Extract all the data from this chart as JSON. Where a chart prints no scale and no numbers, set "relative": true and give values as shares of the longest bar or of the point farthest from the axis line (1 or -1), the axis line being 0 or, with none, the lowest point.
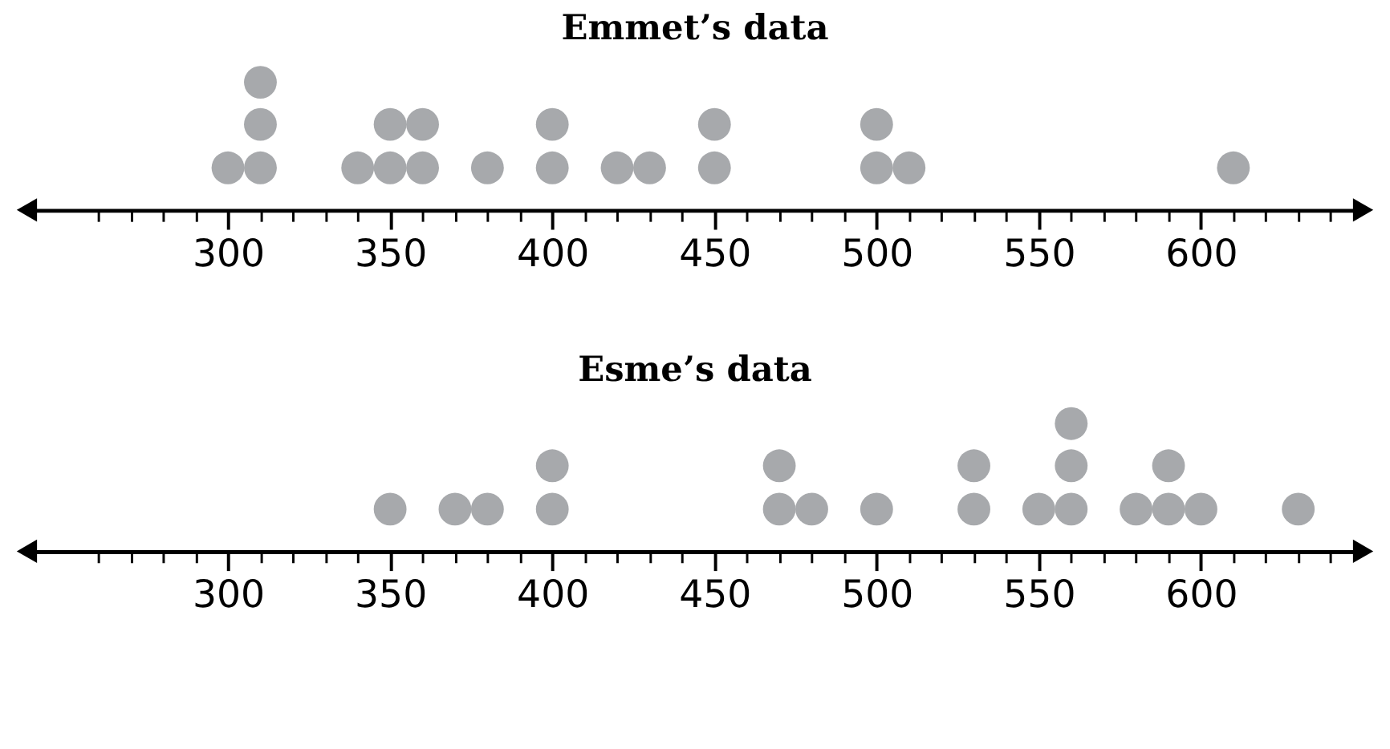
{
  "chart_data": [
    {
      "type": "scatter",
      "title": "Emmet’s data",
      "relative": true,
      "marker": "circle",
      "color": "#a7a9ac",
      "xlim": [
        238,
        650
      ],
      "tick_labels": "x",
      "x": [
        300,
        310,
        310,
        310,
        340,
        350,
        350,
        360,
        360,
        380,
        400,
        400,
        420,
        430,
        450,
        450,
        500,
        500,
        510,
        610
      ],
      "values": [
        0.33,
        0.33,
        0.67,
        1,
        0.33,
        0.33,
        0.67,
        0.33,
        0.67,
        0.33,
        0.33,
        0.67,
        0.33,
        0.33,
        0.33,
        0.67,
        0.33,
        0.67,
        0.33,
        0.33
      ],
      "xticks": [
        {
          "value": 260,
          "label": null
        },
        {
          "value": 270,
          "label": null
        },
        {
          "value": 280,
          "label": null
        },
        {
          "value": 290,
          "label": null
        },
        300,
        {
          "value": 310,
          "label": null
        },
        {
          "value": 320,
          "label": null
        },
        {
          "value": 330,
          "label": null
        },
        {
          "value": 340,
          "label": null
        },
        350,
        {
          "value": 360,
          "label": null
        },
        {
          "value": 370,
          "label": null
        },
        {
          "value": 380,
          "label": null
        },
        {
          "value": 390,
          "label": null
        },
        400,
        {
          "value": 410,
          "label": null
        },
        {
          "value": 420,
          "label": null
        },
        {
          "value": 430,
          "label": null
        },
        {
          "value": 440,
          "label": null
        },
        450,
        {
          "value": 460,
          "label": null
        },
        {
          "value": 470,
          "label": null
        },
        {
          "value": 480,
          "label": null
        },
        {
          "value": 490,
          "label": null
        },
        500,
        {
          "value": 510,
          "label": null
        },
        {
          "value": 520,
          "label": null
        },
        {
          "value": 530,
          "label": null
        },
        {
          "value": 540,
          "label": null
        },
        550,
        {
          "value": 560,
          "label": null
        },
        {
          "value": 570,
          "label": null
        },
        {
          "value": 580,
          "label": null
        },
        {
          "value": 590,
          "label": null
        },
        600,
        {
          "value": 610,
          "label": null
        },
        {
          "value": 620,
          "label": null
        },
        {
          "value": 630,
          "label": null
        },
        {
          "value": 640,
          "label": null
        }
      ]
    },
    {
      "type": "scatter",
      "title": "Esme’s data",
      "relative": true,
      "marker": "circle",
      "color": "#a7a9ac",
      "xlim": [
        238,
        650
      ],
      "tick_labels": "x",
      "x": [
        350,
        370,
        380,
        400,
        400,
        470,
        470,
        480,
        500,
        530,
        530,
        550,
        560,
        560,
        560,
        580,
        590,
        590,
        600,
        630
      ],
      "values": [
        0.33,
        0.33,
        0.33,
        0.33,
        0.67,
        0.33,
        0.67,
        0.33,
        0.33,
        0.33,
        0.67,
        0.33,
        0.33,
        0.67,
        1,
        0.33,
        0.33,
        0.67,
        0.33,
        0.33
      ],
      "xticks": [
        {
          "value": 260,
          "label": null
        },
        {
          "value": 270,
          "label": null
        },
        {
          "value": 280,
          "label": null
        },
        {
          "value": 290,
          "label": null
        },
        300,
        {
          "value": 310,
          "label": null
        },
        {
          "value": 320,
          "label": null
        },
        {
          "value": 330,
          "label": null
        },
        {
          "value": 340,
          "label": null
        },
        350,
        {
          "value": 360,
          "label": null
        },
        {
          "value": 370,
          "label": null
        },
        {
          "value": 380,
          "label": null
        },
        {
          "value": 390,
          "label": null
        },
        400,
        {
          "value": 410,
          "label": null
        },
        {
          "value": 420,
          "label": null
        },
        {
          "value": 430,
          "label": null
        },
        {
          "value": 440,
          "label": null
        },
        450,
        {
          "value": 460,
          "label": null
        },
        {
          "value": 470,
          "label": null
        },
        {
          "value": 480,
          "label": null
        },
        {
          "value": 490,
          "label": null
        },
        500,
        {
          "value": 510,
          "label": null
        },
        {
          "value": 520,
          "label": null
        },
        {
          "value": 530,
          "label": null
        },
        {
          "value": 540,
          "label": null
        },
        550,
        {
          "value": 560,
          "label": null
        },
        {
          "value": 570,
          "label": null
        },
        {
          "value": 580,
          "label": null
        },
        {
          "value": 590,
          "label": null
        },
        600,
        {
          "value": 610,
          "label": null
        },
        {
          "value": 620,
          "label": null
        },
        {
          "value": 630,
          "label": null
        },
        {
          "value": 640,
          "label": null
        }
      ]
    }
  ]
}
